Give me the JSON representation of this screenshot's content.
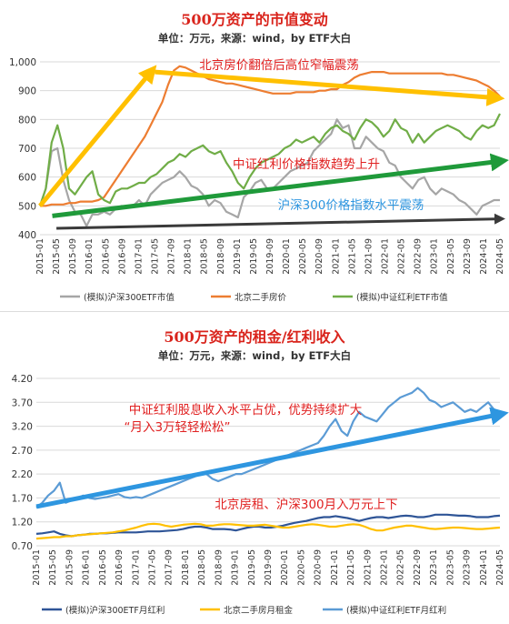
{
  "chart_data": [
    {
      "type": "line",
      "title": "500万资产的市值变动",
      "subtitle": "单位：万元，来源：wind，by ETF大白",
      "ylim": [
        400,
        1000
      ],
      "yticks": [
        "400",
        "500",
        "600",
        "700",
        "800",
        "900",
        "1,000"
      ],
      "xticks": [
        "2015-01",
        "2015-05",
        "2015-09",
        "2016-01",
        "2016-05",
        "2016-09",
        "2017-01",
        "2017-05",
        "2017-09",
        "2018-01",
        "2018-05",
        "2018-09",
        "2019-01",
        "2019-05",
        "2019-09",
        "2020-01",
        "2020-05",
        "2020-09",
        "2021-01",
        "2021-05",
        "2021-09",
        "2022-01",
        "2022-05",
        "2022-09",
        "2023-01",
        "2023-05",
        "2023-09",
        "2024-01",
        "2024-05"
      ],
      "grid": true,
      "legend_position": "bottom",
      "series": [
        {
          "name": "(模拟)沪深300ETF市值",
          "color": "#a6a6a6",
          "values": [
            500,
            560,
            690,
            700,
            590,
            520,
            480,
            470,
            430,
            470,
            470,
            480,
            470,
            490,
            500,
            495,
            500,
            520,
            500,
            540,
            560,
            580,
            590,
            600,
            620,
            600,
            570,
            560,
            540,
            500,
            520,
            510,
            480,
            470,
            460,
            530,
            550,
            580,
            590,
            560,
            560,
            580,
            600,
            620,
            630,
            640,
            650,
            690,
            710,
            730,
            750,
            800,
            770,
            780,
            700,
            700,
            740,
            720,
            700,
            690,
            650,
            640,
            600,
            580,
            560,
            590,
            600,
            560,
            540,
            560,
            550,
            540,
            520,
            510,
            490,
            470,
            500,
            510,
            520,
            520
          ]
        },
        {
          "name": "北京二手房价",
          "color": "#ed7d31",
          "values": [
            500,
            500,
            505,
            505,
            505,
            510,
            510,
            515,
            515,
            515,
            520,
            530,
            560,
            590,
            620,
            650,
            680,
            710,
            740,
            780,
            820,
            860,
            920,
            970,
            985,
            980,
            970,
            960,
            950,
            940,
            935,
            930,
            925,
            925,
            920,
            915,
            910,
            905,
            900,
            895,
            890,
            890,
            890,
            890,
            895,
            895,
            895,
            895,
            900,
            900,
            905,
            905,
            920,
            930,
            945,
            955,
            960,
            965,
            965,
            965,
            960,
            960,
            960,
            960,
            960,
            960,
            960,
            960,
            960,
            960,
            955,
            955,
            950,
            945,
            940,
            935,
            925,
            915,
            900,
            880
          ]
        },
        {
          "name": "(模拟)中证红利ETF市值",
          "color": "#70ad47",
          "values": [
            500,
            560,
            720,
            780,
            700,
            560,
            540,
            570,
            600,
            620,
            540,
            520,
            510,
            550,
            560,
            560,
            570,
            580,
            580,
            600,
            610,
            630,
            650,
            660,
            680,
            670,
            690,
            700,
            710,
            690,
            680,
            690,
            650,
            620,
            580,
            560,
            600,
            630,
            650,
            660,
            670,
            680,
            700,
            710,
            730,
            720,
            730,
            740,
            720,
            750,
            770,
            780,
            760,
            750,
            730,
            770,
            800,
            790,
            770,
            740,
            760,
            800,
            770,
            760,
            720,
            750,
            720,
            740,
            760,
            770,
            780,
            770,
            760,
            740,
            730,
            760,
            780,
            770,
            780,
            820
          ]
        }
      ],
      "annotations": [
        {
          "text": "北京房价翻倍后高位窄幅震荡",
          "color": "#e02020"
        },
        {
          "text": "中证红利价格指数趋势上升",
          "color": "#e02020"
        },
        {
          "text": "沪深300价格指数水平震荡",
          "color": "#2e96e0"
        }
      ],
      "arrows": [
        {
          "from": [
            "2015-01",
            500
          ],
          "to": [
            "2017-04",
            965
          ],
          "color": "#ffc000"
        },
        {
          "from": [
            "2017-05",
            965
          ],
          "to": [
            "2024-04",
            875
          ],
          "color": "#ffc000"
        },
        {
          "from": [
            "2015-04",
            465
          ],
          "to": [
            "2024-05",
            655
          ],
          "color": "#1f9a3a"
        },
        {
          "from": [
            "2015-05",
            422
          ],
          "to": [
            "2024-05",
            455
          ],
          "color": "#3a3a3a"
        }
      ]
    },
    {
      "type": "line",
      "title": "500万资产的租金/红利收入",
      "subtitle": "单位：万元，来源：wind，by ETF大白",
      "ylim": [
        0.7,
        4.2
      ],
      "yticks": [
        "0.70",
        "1.20",
        "1.70",
        "2.20",
        "2.70",
        "3.20",
        "3.70",
        "4.20"
      ],
      "xticks": [
        "2015-01",
        "2015-05",
        "2015-09",
        "2016-01",
        "2016-05",
        "2016-09",
        "2017-01",
        "2017-05",
        "2017-09",
        "2018-01",
        "2018-05",
        "2018-09",
        "2019-01",
        "2019-05",
        "2019-09",
        "2020-01",
        "2020-05",
        "2020-09",
        "2021-01",
        "2021-05",
        "2021-09",
        "2022-01",
        "2022-05",
        "2022-09",
        "2023-01",
        "2023-05",
        "2023-09",
        "2024-01",
        "2024-05"
      ],
      "grid": true,
      "legend_position": "bottom",
      "series": [
        {
          "name": "(模拟)沪深300ETF月红利",
          "color": "#2f5597",
          "values": [
            0.95,
            0.96,
            0.98,
            1.0,
            0.95,
            0.92,
            0.9,
            0.92,
            0.93,
            0.95,
            0.95,
            0.96,
            0.96,
            0.97,
            0.98,
            0.98,
            0.98,
            0.98,
            0.99,
            1.0,
            1.0,
            1.0,
            1.01,
            1.02,
            1.03,
            1.05,
            1.08,
            1.1,
            1.1,
            1.08,
            1.05,
            1.05,
            1.05,
            1.04,
            1.02,
            1.05,
            1.08,
            1.1,
            1.1,
            1.08,
            1.08,
            1.1,
            1.12,
            1.15,
            1.18,
            1.2,
            1.22,
            1.25,
            1.28,
            1.3,
            1.3,
            1.32,
            1.3,
            1.28,
            1.25,
            1.22,
            1.25,
            1.28,
            1.3,
            1.3,
            1.28,
            1.3,
            1.32,
            1.33,
            1.32,
            1.3,
            1.3,
            1.32,
            1.35,
            1.35,
            1.35,
            1.34,
            1.33,
            1.33,
            1.32,
            1.3,
            1.3,
            1.3,
            1.32,
            1.33
          ]
        },
        {
          "name": "北京二手房月租金",
          "color": "#ffc000",
          "values": [
            0.85,
            0.86,
            0.87,
            0.88,
            0.88,
            0.9,
            0.9,
            0.92,
            0.93,
            0.94,
            0.95,
            0.96,
            0.97,
            0.98,
            1.0,
            1.02,
            1.05,
            1.08,
            1.12,
            1.15,
            1.16,
            1.15,
            1.12,
            1.1,
            1.12,
            1.14,
            1.15,
            1.16,
            1.15,
            1.12,
            1.12,
            1.14,
            1.15,
            1.15,
            1.14,
            1.13,
            1.12,
            1.12,
            1.13,
            1.14,
            1.12,
            1.1,
            1.08,
            1.08,
            1.1,
            1.12,
            1.14,
            1.15,
            1.14,
            1.12,
            1.1,
            1.1,
            1.12,
            1.14,
            1.15,
            1.14,
            1.1,
            1.05,
            1.02,
            1.02,
            1.05,
            1.08,
            1.1,
            1.12,
            1.12,
            1.1,
            1.08,
            1.06,
            1.05,
            1.06,
            1.07,
            1.08,
            1.08,
            1.07,
            1.06,
            1.05,
            1.05,
            1.06,
            1.07,
            1.08
          ]
        },
        {
          "name": "(模拟)中证红利ETF月红利",
          "color": "#5b9bd5",
          "values": [
            1.5,
            1.6,
            1.75,
            1.85,
            2.02,
            1.6,
            1.65,
            1.7,
            1.75,
            1.7,
            1.68,
            1.7,
            1.72,
            1.75,
            1.78,
            1.72,
            1.7,
            1.72,
            1.7,
            1.75,
            1.8,
            1.85,
            1.9,
            1.95,
            2.0,
            2.05,
            2.1,
            2.15,
            2.2,
            2.2,
            2.1,
            2.05,
            2.1,
            2.15,
            2.2,
            2.2,
            2.25,
            2.3,
            2.35,
            2.4,
            2.45,
            2.5,
            2.55,
            2.6,
            2.65,
            2.7,
            2.75,
            2.8,
            2.85,
            3.0,
            3.2,
            3.35,
            3.1,
            3.0,
            3.3,
            3.5,
            3.4,
            3.35,
            3.3,
            3.45,
            3.6,
            3.7,
            3.8,
            3.85,
            3.9,
            4.0,
            3.9,
            3.75,
            3.7,
            3.6,
            3.65,
            3.7,
            3.6,
            3.5,
            3.55,
            3.5,
            3.6,
            3.7,
            3.55,
            3.5
          ]
        }
      ],
      "annotations": [
        {
          "text": "中证红利股息收入水平占优，优势持续扩大",
          "color": "#e02020"
        },
        {
          "text": "“月入3万轻轻松松”",
          "color": "#e02020"
        },
        {
          "text": "北京房租、沪深300月入万元上下",
          "color": "#e02020"
        }
      ],
      "arrows": [
        {
          "from": [
            "2015-01",
            1.52
          ],
          "to": [
            "2024-05",
            3.45
          ],
          "color": "#2e96e0"
        }
      ]
    }
  ]
}
